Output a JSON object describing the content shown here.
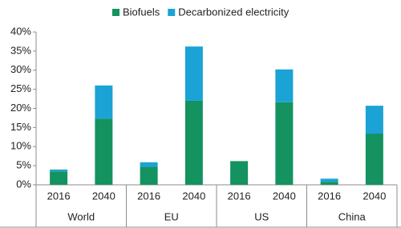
{
  "chart_data": {
    "type": "stacked-bar",
    "categories": [
      "2016",
      "2040",
      "2016",
      "2040",
      "2016",
      "2040",
      "2016",
      "2040"
    ],
    "groups": [
      "World",
      "EU",
      "US",
      "China"
    ],
    "series": [
      {
        "name": "Biofuels",
        "color": "#149260",
        "values": [
          3.5,
          17.3,
          4.7,
          22,
          6.2,
          21.6,
          0.8,
          13.4
        ]
      },
      {
        "name": "Decarbonized electricity",
        "color": "#1ba3d5",
        "values": [
          0.5,
          8.7,
          1.2,
          14.2,
          0,
          8.6,
          0.8,
          7.3
        ]
      }
    ],
    "ylim": [
      0,
      40
    ],
    "yticks": [
      {
        "value": 0,
        "label": "0%"
      },
      {
        "value": 5,
        "label": "5%"
      },
      {
        "value": 10,
        "label": "10%"
      },
      {
        "value": 15,
        "label": "15%"
      },
      {
        "value": 20,
        "label": "20%"
      },
      {
        "value": 25,
        "label": "25%"
      },
      {
        "value": 30,
        "label": "30%"
      },
      {
        "value": 35,
        "label": "35%"
      },
      {
        "value": 40,
        "label": "40%"
      }
    ],
    "grid": false
  }
}
